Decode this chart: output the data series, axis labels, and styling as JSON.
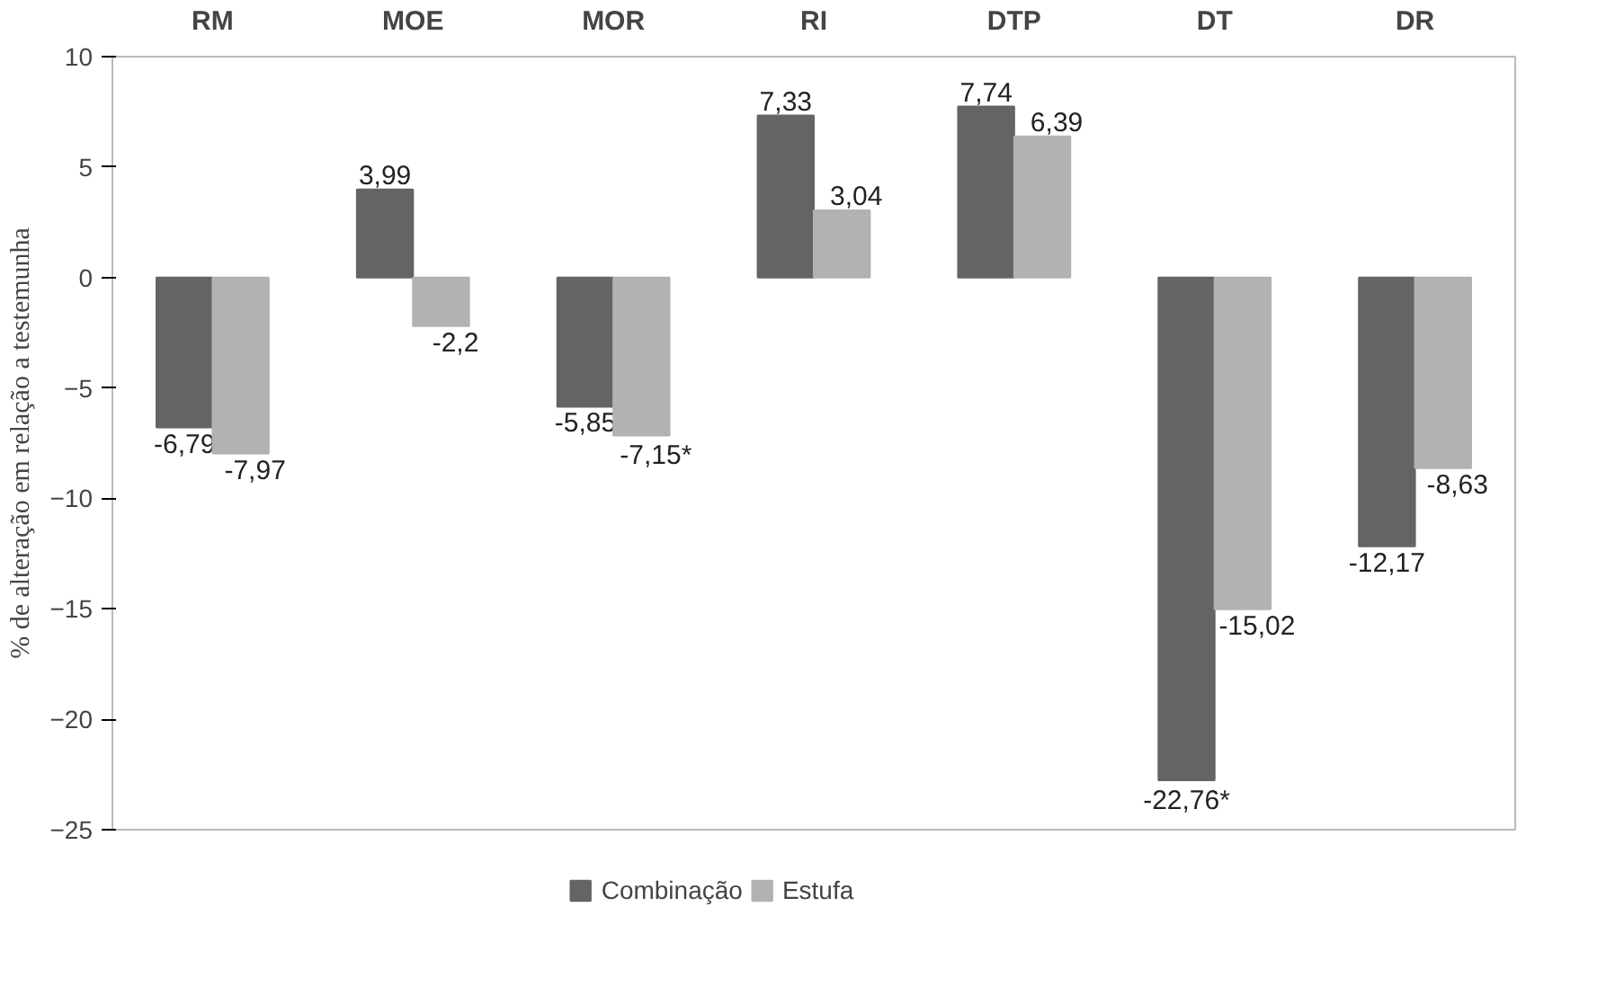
{
  "chart_data": {
    "type": "bar",
    "ylabel": "% de alteração em relação a testemunha",
    "categories": [
      "RM",
      "MOE",
      "MOR",
      "RI",
      "DTP",
      "DT",
      "DR"
    ],
    "series": [
      {
        "name": "Combinação",
        "color": "#646464",
        "values": [
          -6.79,
          3.99,
          -5.85,
          7.33,
          7.74,
          -22.76,
          -12.17
        ],
        "value_labels": [
          "-6,79",
          "3,99",
          "-5,85",
          "7,33",
          "7,74",
          "-22,76*",
          "-12,17"
        ]
      },
      {
        "name": "Estufa",
        "color": "#b2b2b2",
        "values": [
          -7.97,
          -2.2,
          -7.15,
          3.04,
          6.39,
          -15.02,
          -8.63
        ],
        "value_labels": [
          "-7,97",
          "-2,2",
          "-7,15*",
          "3,04",
          "6,39",
          "-15,02",
          "-8,63"
        ]
      }
    ],
    "ylim": [
      -25,
      10
    ],
    "yticks": [
      10,
      5,
      0,
      -5,
      -10,
      -15,
      -20,
      -25
    ],
    "grid": false,
    "legend": "bottom"
  }
}
